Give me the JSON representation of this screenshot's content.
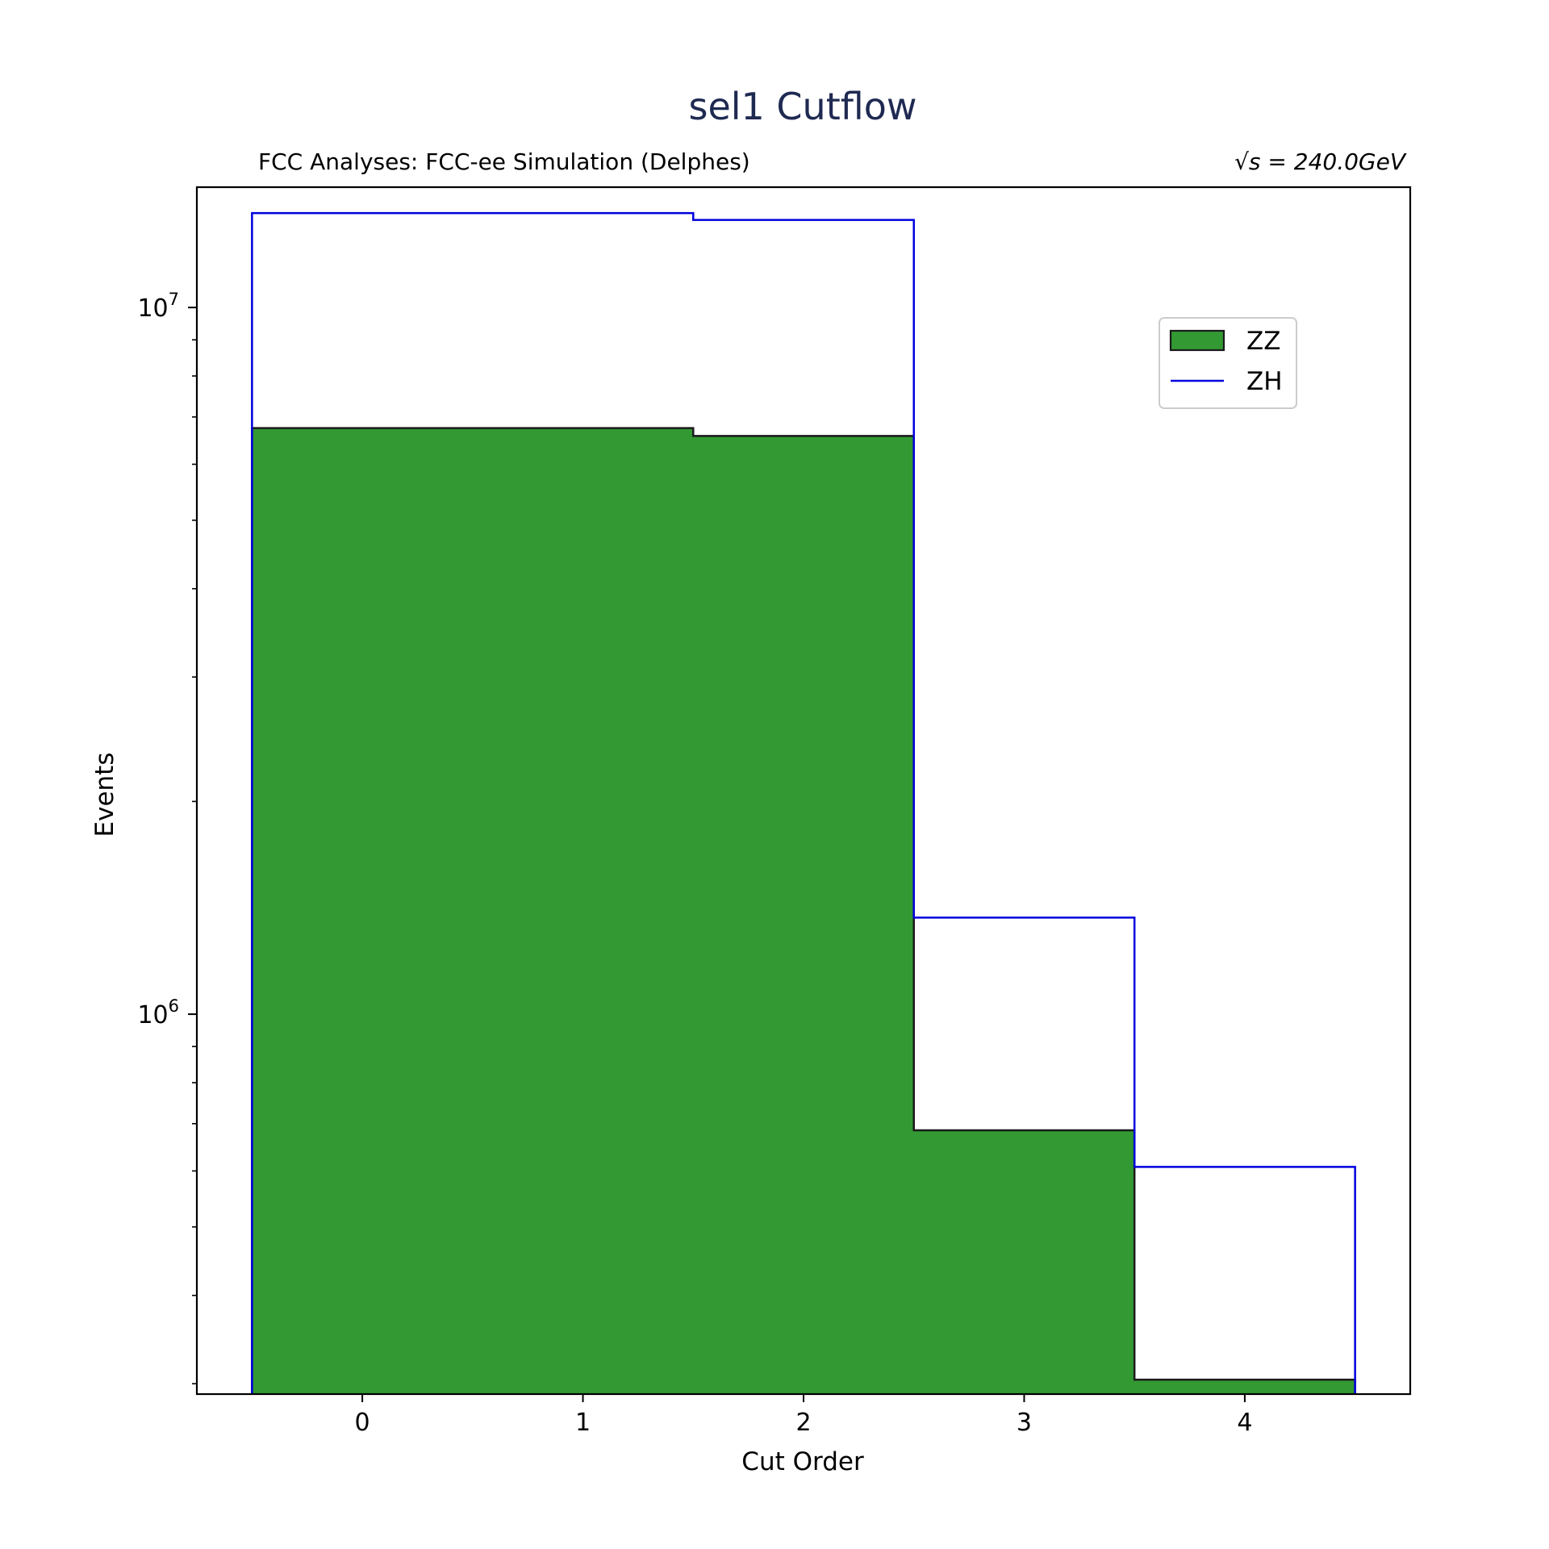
{
  "chart_data": {
    "type": "histogram-step",
    "title": "sel1 Cutflow",
    "subtitle_left": "FCC Analyses: FCC-ee Simulation (Delphes)",
    "subtitle_right": "√s = 240.0GeV",
    "xlabel": "Cut Order",
    "ylabel": "Events",
    "xlim": [
      -0.75,
      4.75
    ],
    "ylim": [
      290000,
      14800000
    ],
    "yscale": "log",
    "x_ticks": [
      0,
      1,
      2,
      3,
      4
    ],
    "x_tick_labels": [
      "0",
      "1",
      "2",
      "3",
      "4"
    ],
    "y_major_ticks": [
      {
        "value": 1000000,
        "base": "10",
        "exp": "6"
      },
      {
        "value": 10000000,
        "base": "10",
        "exp": "7"
      }
    ],
    "bin_edges": [
      -0.5,
      1.5,
      2.5,
      3.5,
      4.5
    ],
    "series": [
      {
        "name": "ZZ",
        "style": "filled",
        "color": "#339933",
        "edge_color": "#1a1a1a",
        "values": [
          6750000,
          6580000,
          685000,
          304000
        ]
      },
      {
        "name": "ZH",
        "style": "step",
        "color": "#0000dd",
        "values": [
          13600000,
          13300000,
          1370000,
          608000
        ]
      }
    ],
    "legend": {
      "position": "upper-right"
    },
    "grid": false
  }
}
